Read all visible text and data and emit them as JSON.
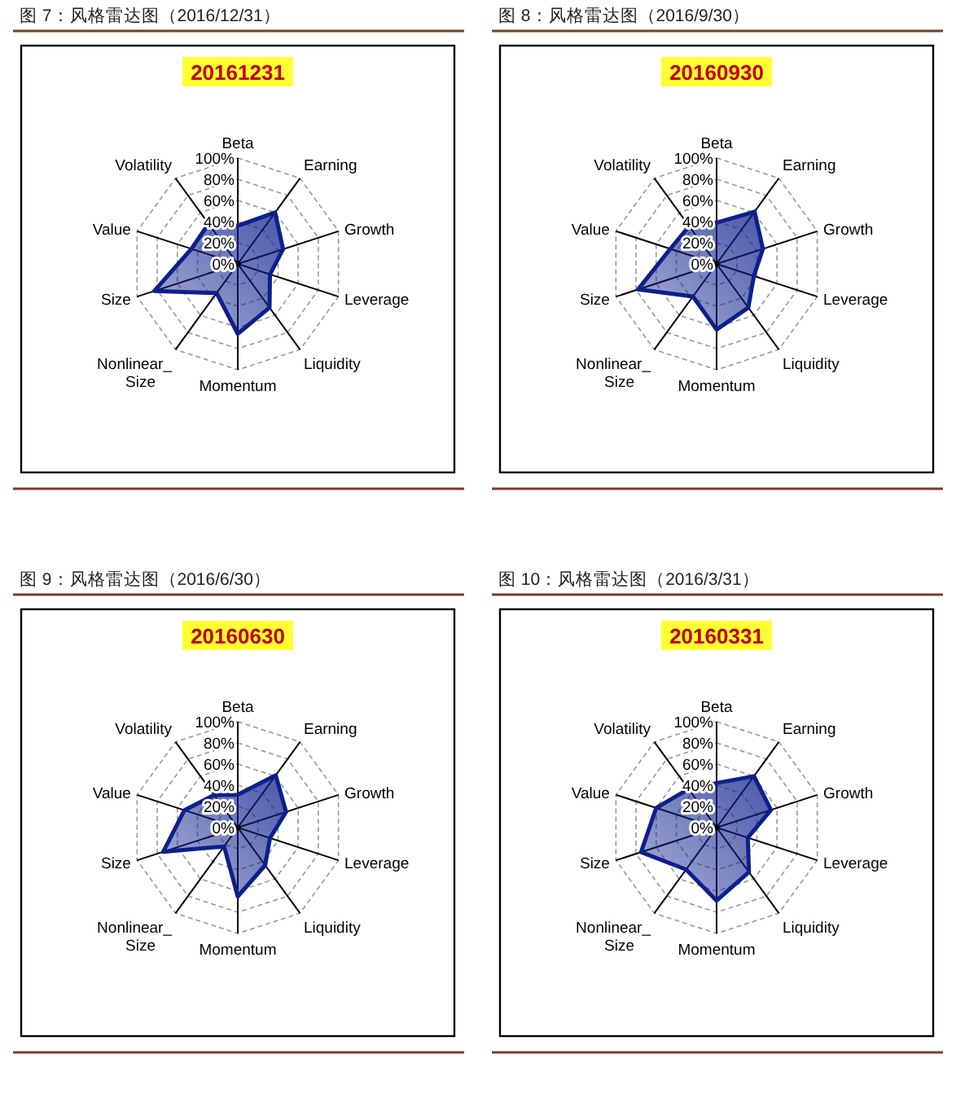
{
  "chart_data": [
    {
      "type": "radar",
      "title": "图 7：风格雷达图（2016/12/31）",
      "subtitle": "20161231",
      "categories": [
        "Beta",
        "Earning",
        "Growth",
        "Leverage",
        "Liquidity",
        "Momentum",
        "Nonlinear_Size",
        "Size",
        "Value",
        "Volatility"
      ],
      "series": [
        {
          "color": "#0d1f8c",
          "values": [
            0.36,
            0.6,
            0.45,
            0.32,
            0.51,
            0.66,
            0.34,
            0.83,
            0.46,
            0.47
          ]
        }
      ],
      "ylim": [
        0,
        1
      ],
      "yticks": [
        {
          "value": 0,
          "label": "0%"
        },
        {
          "value": 0.2,
          "label": "20%"
        },
        {
          "value": 0.4,
          "label": "40%"
        },
        {
          "value": 0.6,
          "label": "60%"
        },
        {
          "value": 0.8,
          "label": "80%"
        },
        {
          "value": 1,
          "label": "100%"
        }
      ],
      "grid": true
    },
    {
      "type": "radar",
      "title": "图 8：风格雷达图（2016/9/30）",
      "subtitle": "20160930",
      "categories": [
        "Beta",
        "Earning",
        "Growth",
        "Leverage",
        "Liquidity",
        "Momentum",
        "Nonlinear_Size",
        "Size",
        "Value",
        "Volatility"
      ],
      "series": [
        {
          "color": "#0d1f8c",
          "values": [
            0.39,
            0.61,
            0.46,
            0.37,
            0.51,
            0.62,
            0.38,
            0.78,
            0.46,
            0.44
          ]
        }
      ],
      "ylim": [
        0,
        1
      ],
      "yticks": [
        {
          "value": 0,
          "label": "0%"
        },
        {
          "value": 0.2,
          "label": "20%"
        },
        {
          "value": 0.4,
          "label": "40%"
        },
        {
          "value": 0.6,
          "label": "60%"
        },
        {
          "value": 0.8,
          "label": "80%"
        },
        {
          "value": 1,
          "label": "100%"
        }
      ],
      "grid": true
    },
    {
      "type": "radar",
      "title": "图 9：风格雷达图（2016/6/30）",
      "subtitle": "20160630",
      "categories": [
        "Beta",
        "Earning",
        "Growth",
        "Leverage",
        "Liquidity",
        "Momentum",
        "Nonlinear_Size",
        "Size",
        "Value",
        "Volatility"
      ],
      "series": [
        {
          "color": "#0d1f8c",
          "values": [
            0.31,
            0.61,
            0.48,
            0.32,
            0.44,
            0.65,
            0.22,
            0.74,
            0.53,
            0.38
          ]
        }
      ],
      "ylim": [
        0,
        1
      ],
      "yticks": [
        {
          "value": 0,
          "label": "0%"
        },
        {
          "value": 0.2,
          "label": "20%"
        },
        {
          "value": 0.4,
          "label": "40%"
        },
        {
          "value": 0.6,
          "label": "60%"
        },
        {
          "value": 0.8,
          "label": "80%"
        },
        {
          "value": 1,
          "label": "100%"
        }
      ],
      "grid": true
    },
    {
      "type": "radar",
      "title": "图 10：风格雷达图（2016/3/31）",
      "subtitle": "20160331",
      "categories": [
        "Beta",
        "Earning",
        "Growth",
        "Leverage",
        "Liquidity",
        "Momentum",
        "Nonlinear_Size",
        "Size",
        "Value",
        "Volatility"
      ],
      "series": [
        {
          "color": "#0d1f8c",
          "values": [
            0.42,
            0.6,
            0.54,
            0.31,
            0.52,
            0.69,
            0.49,
            0.75,
            0.6,
            0.45
          ]
        }
      ],
      "ylim": [
        0,
        1
      ],
      "yticks": [
        {
          "value": 0,
          "label": "0%"
        },
        {
          "value": 0.2,
          "label": "20%"
        },
        {
          "value": 0.4,
          "label": "40%"
        },
        {
          "value": 0.6,
          "label": "60%"
        },
        {
          "value": 0.8,
          "label": "80%"
        },
        {
          "value": 1,
          "label": "100%"
        }
      ],
      "grid": true
    }
  ]
}
